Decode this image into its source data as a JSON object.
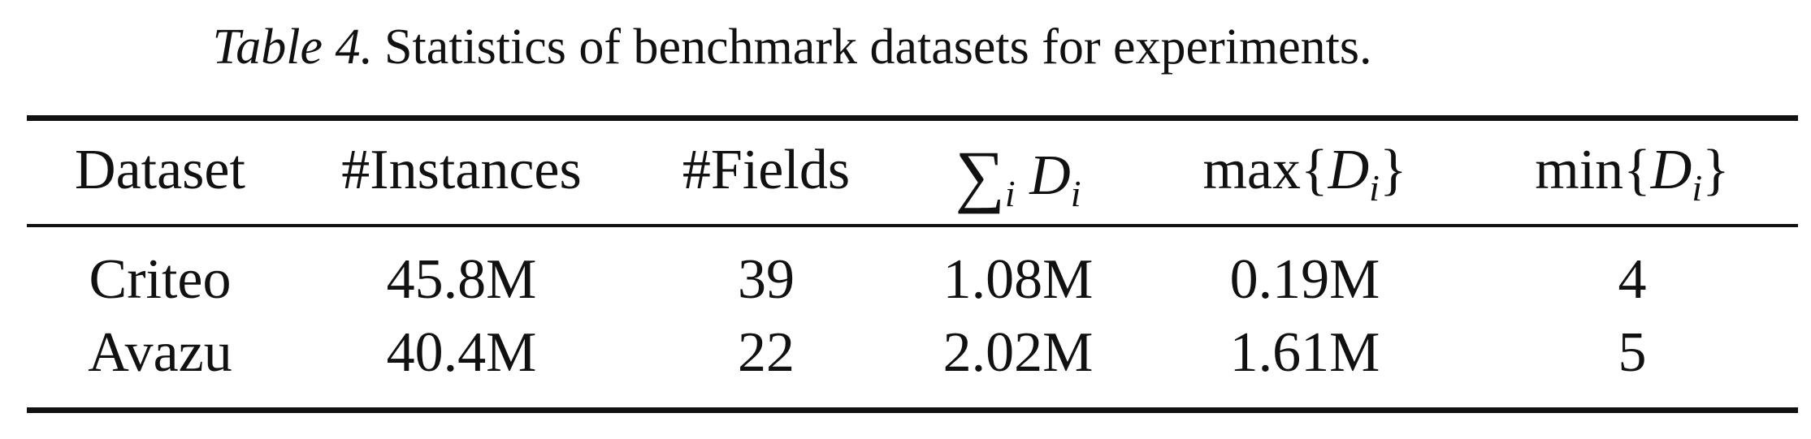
{
  "caption": {
    "label": "Table 4.",
    "text": "Statistics of benchmark datasets for experiments."
  },
  "table": {
    "headers": {
      "dataset": "Dataset",
      "instances": "#Instances",
      "fields": "#Fields",
      "sum_op": "∑",
      "sum_index": "i",
      "sum_var": "D",
      "sum_var_index": "i",
      "max_op": "max",
      "max_lbrace": "{",
      "max_var": "D",
      "max_var_index": "i",
      "max_rbrace": "}",
      "min_op": "min",
      "min_lbrace": "{",
      "min_var": "D",
      "min_var_index": "i",
      "min_rbrace": "}"
    },
    "rows": [
      {
        "dataset": "Criteo",
        "instances": "45.8M",
        "fields": "39",
        "sum_d": "1.08M",
        "max_d": "0.19M",
        "min_d": "4"
      },
      {
        "dataset": "Avazu",
        "instances": "40.4M",
        "fields": "22",
        "sum_d": "2.02M",
        "max_d": "1.61M",
        "min_d": "5"
      }
    ]
  }
}
